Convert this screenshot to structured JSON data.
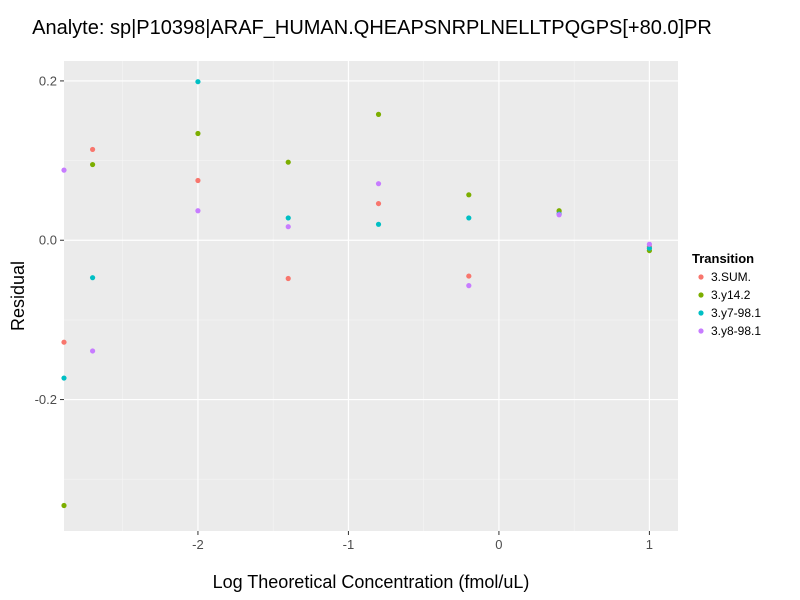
{
  "chart_data": {
    "type": "scatter",
    "title": "Analyte: sp|P10398|ARAF_HUMAN.QHEAPSNRPLNELLTPQGPS[+80.0]PR",
    "xlabel": "Log Theoretical Concentration (fmol/uL)",
    "ylabel": "Residual",
    "xlim": [
      -2.89,
      1.19
    ],
    "ylim": [
      -0.365,
      0.225
    ],
    "x_ticks": [
      -2,
      -1,
      0,
      1
    ],
    "y_ticks": [
      -0.2,
      0.0,
      0.2
    ],
    "x_tick_labels": [
      "-2",
      "-1",
      "0",
      "1"
    ],
    "y_tick_labels": [
      "-0.2",
      "0.0",
      "0.2"
    ],
    "grid": true,
    "legend": {
      "title": "Transition",
      "position": "right"
    },
    "series": [
      {
        "name": "3.SUM.",
        "color": "#F8766D",
        "x": [
          -2.89,
          -2.7,
          -2.0,
          -1.4,
          -0.8,
          -0.2,
          0.4,
          1.0
        ],
        "y": [
          -0.128,
          0.114,
          0.075,
          -0.048,
          0.046,
          -0.045,
          0.036,
          -0.008
        ]
      },
      {
        "name": "3.y14.2",
        "color": "#7CAE00",
        "x": [
          -2.89,
          -2.7,
          -2.0,
          -1.4,
          -0.8,
          -0.2,
          0.4,
          1.0
        ],
        "y": [
          -0.333,
          0.095,
          0.134,
          0.098,
          0.158,
          0.057,
          0.037,
          -0.013
        ]
      },
      {
        "name": "3.y7-98.1",
        "color": "#00BFC4",
        "x": [
          -2.89,
          -2.7,
          -2.0,
          -1.4,
          -0.8,
          -0.2,
          0.4,
          1.0
        ],
        "y": [
          -0.173,
          -0.047,
          0.199,
          0.028,
          0.02,
          0.028,
          0.033,
          -0.01
        ]
      },
      {
        "name": "3.y8-98.1",
        "color": "#C77CFF",
        "x": [
          -2.89,
          -2.7,
          -2.0,
          -1.4,
          -0.8,
          -0.2,
          0.4,
          1.0
        ],
        "y": [
          0.088,
          -0.139,
          0.037,
          0.017,
          0.071,
          -0.057,
          0.032,
          -0.005
        ]
      }
    ]
  }
}
